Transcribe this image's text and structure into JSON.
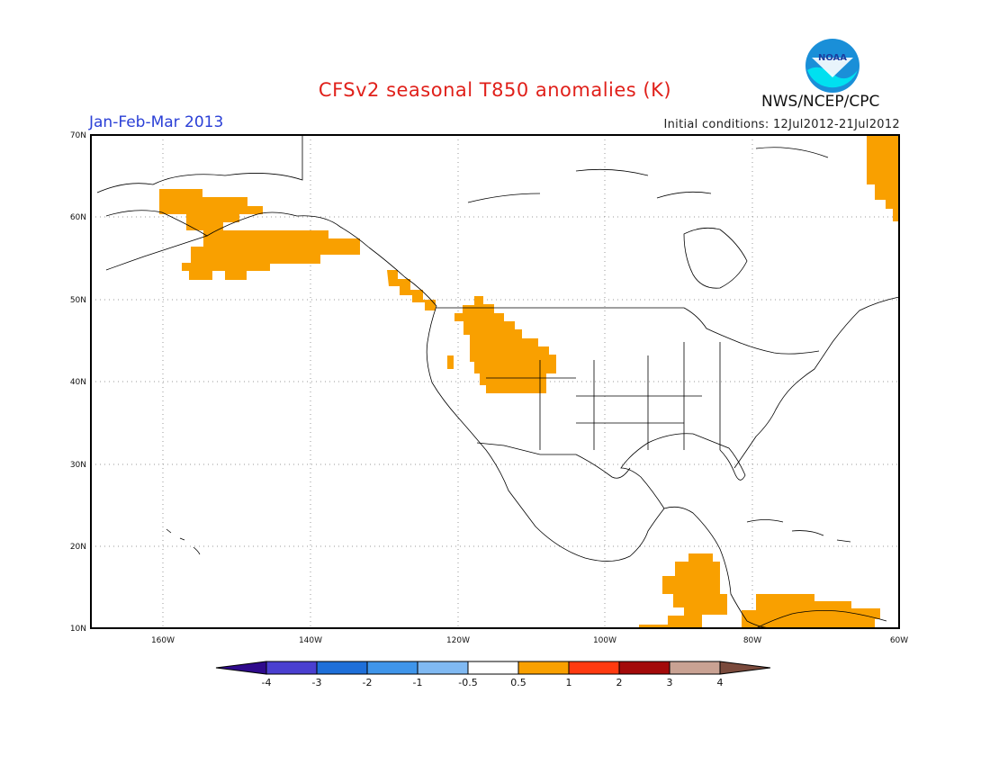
{
  "header": {
    "title": "CFSv2 seasonal T850 anomalies (K)",
    "period": "Jan-Feb-Mar 2013",
    "initial_conditions": "Initial conditions: 12Jul2012-21Jul2012",
    "agency": "NWS/NCEP/CPC",
    "logo_text": "NOAA"
  },
  "map": {
    "lat_labels": [
      "70N",
      "60N",
      "50N",
      "40N",
      "30N",
      "20N",
      "10N"
    ],
    "lon_labels": [
      "160W",
      "140W",
      "120W",
      "100W",
      "80W",
      "60W"
    ],
    "anomaly_color": "#f9a000",
    "anomaly_regions": [
      "Alaska and Gulf of Alaska",
      "Northwestern United States",
      "Northeast Canada / Labrador",
      "Central America",
      "Northern South America"
    ]
  },
  "colorbar": {
    "ticks": [
      "-4",
      "-3",
      "-2",
      "-1",
      "-0.5",
      "0.5",
      "1",
      "2",
      "3",
      "4"
    ],
    "colors": [
      "#2f0a8c",
      "#4a3fd0",
      "#1e6fd9",
      "#3f95ea",
      "#80b9f2",
      "#ffffff",
      "#f9a000",
      "#ff3a10",
      "#a30a0a",
      "#c9a293",
      "#7a4a3c"
    ]
  }
}
